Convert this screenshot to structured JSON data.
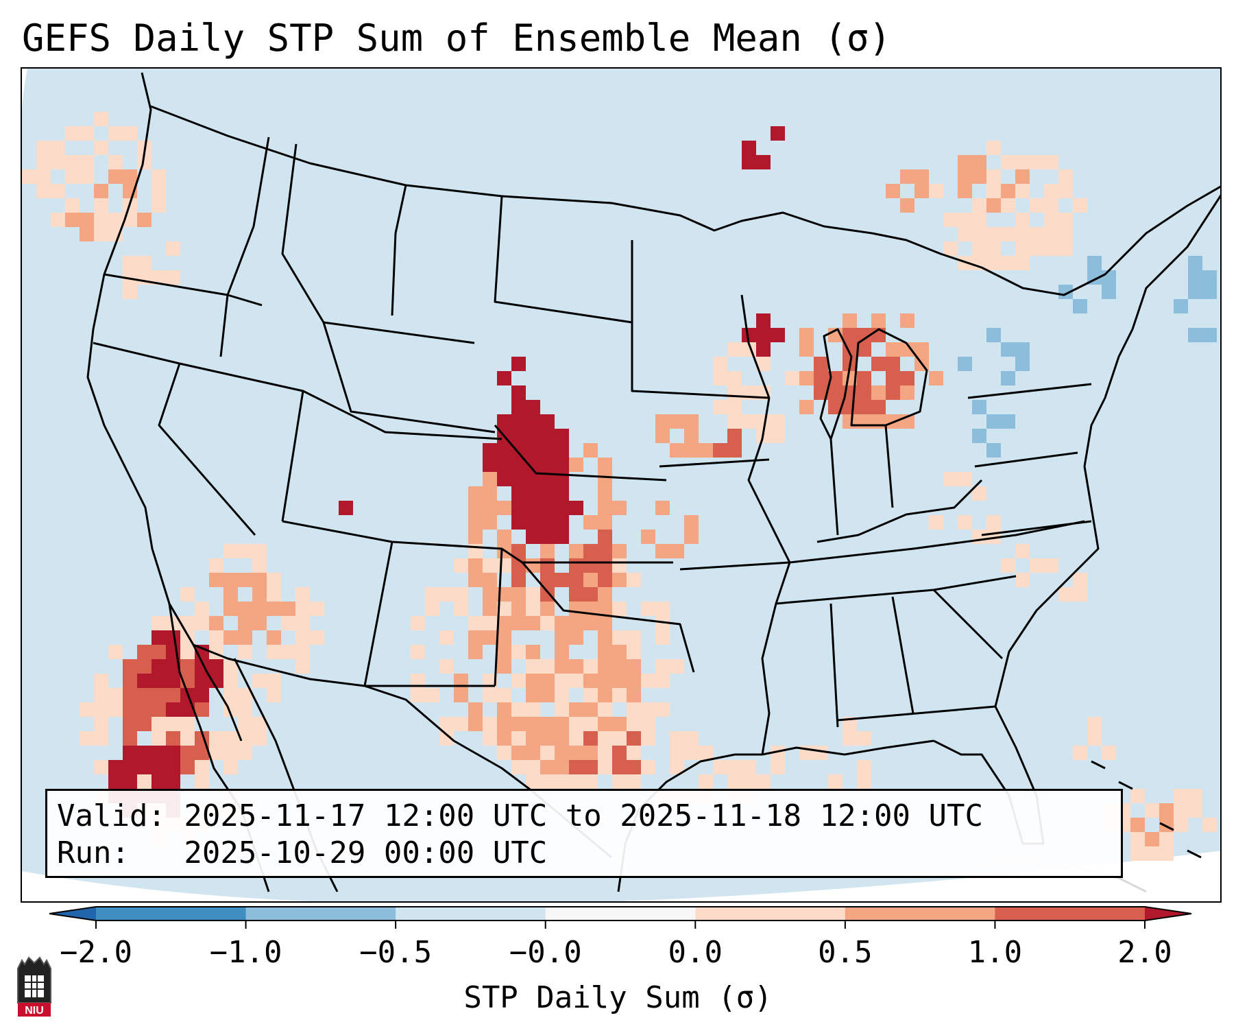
{
  "title": "GEFS Daily STP Sum of Ensemble Mean (σ)",
  "info": {
    "valid_line": "Valid: 2025-11-17 12:00 UTC to 2025-11-18 12:00 UTC",
    "run_line": "Run:   2025-10-29 00:00 UTC"
  },
  "colorbar": {
    "label": "STP Daily Sum (σ)",
    "ticks": [
      "−2.0",
      "−1.0",
      "−0.5",
      "−0.0",
      "0.0",
      "0.5",
      "1.0",
      "2.0"
    ],
    "bins": [
      {
        "from": "-2.0",
        "to": "-1.0",
        "color": "#3f8ec2"
      },
      {
        "from": "-1.0",
        "to": "-0.5",
        "color": "#8cbedc"
      },
      {
        "from": "-0.5",
        "to": "-0.0",
        "color": "#d1e5f0"
      },
      {
        "from": "-0.0",
        "to": "0.0",
        "color": "#f7f7f7"
      },
      {
        "from": "0.0",
        "to": "0.5",
        "color": "#fcdcc8"
      },
      {
        "from": "0.5",
        "to": "1.0",
        "color": "#f4a582"
      },
      {
        "from": "1.0",
        "to": "2.0",
        "color": "#d6604d"
      }
    ],
    "extend_low_color": "#2166ac",
    "extend_high_color": "#b2182b"
  },
  "map": {
    "background_color": "#d1e5f0",
    "region": "Contiguous United States, northern Mexico, southern Canada",
    "highlight": "Strongest positive anomaly (>2.0 σ) over western Kansas, Nebraska and the Oklahoma panhandle; positive anomalies over Texas, Baja California and Michigan"
  },
  "logo": {
    "text": "NIU",
    "icon": "niu-tower-logo-icon"
  }
}
